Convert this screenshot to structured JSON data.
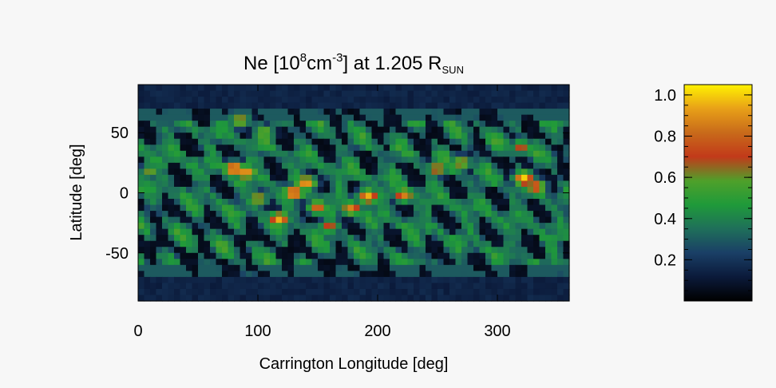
{
  "chart_data": {
    "type": "heatmap",
    "title": {
      "base": "Ne [10",
      "exp1": "8",
      "unit": "cm",
      "exp2": "-3",
      "tail": "] at 1.205 R",
      "sub": "SUN"
    },
    "xlabel": "Carrington Longitude [deg]",
    "ylabel": "Latitude [deg]",
    "xlim": [
      0,
      360
    ],
    "ylim": [
      -90,
      90
    ],
    "xticks": [
      0,
      100,
      200,
      300
    ],
    "yticks": [
      50,
      0,
      -50
    ],
    "colorbar": {
      "range": [
        0,
        1.05
      ],
      "ticks": [
        1.0,
        0.8,
        0.6,
        0.4,
        0.2
      ],
      "tick_labels": [
        "1.0",
        "0.8",
        "0.6",
        "0.4",
        "0.2"
      ],
      "colormap": [
        "#000000",
        "#0b1a3a",
        "#1a3f66",
        "#1f6f5a",
        "#1f9a3a",
        "#4fa02a",
        "#c23a1a",
        "#c86a1a",
        "#e8a018",
        "#fff200"
      ]
    },
    "grid_resolution": [
      72,
      36
    ],
    "hotspots": [
      {
        "lon": 80,
        "lat": 20,
        "value": 1.0
      },
      {
        "lon": 90,
        "lat": 17,
        "value": 0.95
      },
      {
        "lon": 130,
        "lat": 0,
        "value": 1.0
      },
      {
        "lon": 140,
        "lat": 8,
        "value": 0.95
      },
      {
        "lon": 118,
        "lat": -22,
        "value": 0.95
      },
      {
        "lon": 150,
        "lat": -12,
        "value": 0.85
      },
      {
        "lon": 192,
        "lat": -3,
        "value": 0.95
      },
      {
        "lon": 178,
        "lat": -13,
        "value": 0.85
      },
      {
        "lon": 222,
        "lat": -2,
        "value": 0.85
      },
      {
        "lon": 322,
        "lat": 12,
        "value": 1.0
      },
      {
        "lon": 332,
        "lat": 5,
        "value": 0.85
      },
      {
        "lon": 250,
        "lat": 20,
        "value": 0.75
      },
      {
        "lon": 270,
        "lat": 25,
        "value": 0.7
      },
      {
        "lon": 85,
        "lat": 60,
        "value": 0.7
      },
      {
        "lon": 105,
        "lat": 50,
        "value": 0.65
      },
      {
        "lon": 100,
        "lat": -5,
        "value": 0.7
      },
      {
        "lon": 160,
        "lat": -28,
        "value": 0.7
      },
      {
        "lon": 320,
        "lat": 38,
        "value": 0.7
      },
      {
        "lon": 10,
        "lat": 18,
        "value": 0.6
      }
    ]
  }
}
